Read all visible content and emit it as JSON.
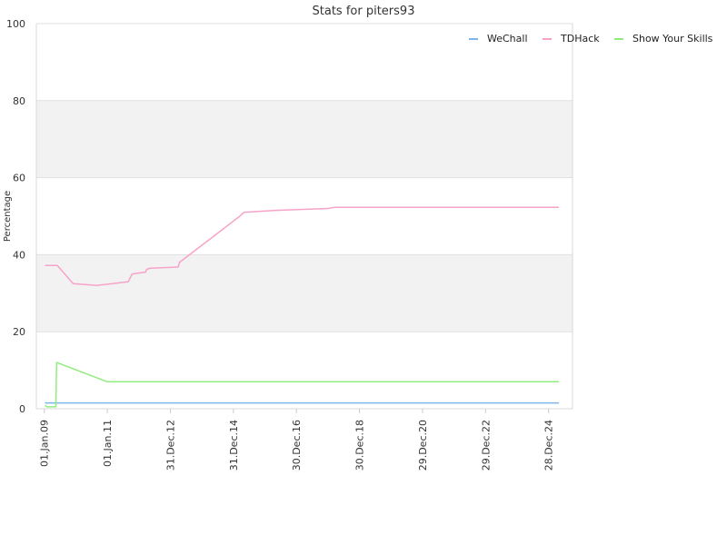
{
  "chart_data": {
    "type": "line",
    "title": "Stats for piters93",
    "xlabel": "",
    "ylabel": "Percentage",
    "ylim": [
      0,
      100
    ],
    "xlim": [
      "2008-10-01",
      "2025-10-01"
    ],
    "yticks": [
      0,
      20,
      40,
      60,
      80,
      100
    ],
    "xticks": [
      {
        "date": "2009-01-01",
        "label": "01.Jan.09"
      },
      {
        "date": "2011-01-01",
        "label": "01.Jan.11"
      },
      {
        "date": "2012-12-31",
        "label": "31.Dec.12"
      },
      {
        "date": "2014-12-31",
        "label": "31.Dec.14"
      },
      {
        "date": "2016-12-30",
        "label": "30.Dec.16"
      },
      {
        "date": "2018-12-30",
        "label": "30.Dec.18"
      },
      {
        "date": "2020-12-29",
        "label": "29.Dec.20"
      },
      {
        "date": "2022-12-29",
        "label": "29.Dec.22"
      },
      {
        "date": "2024-12-28",
        "label": "28.Dec.24"
      }
    ],
    "grid": true,
    "alternating_bands": true,
    "legend_position": "top-right",
    "series": [
      {
        "name": "WeChall",
        "color": "#7cb5ec",
        "points": [
          [
            "2009-01-15",
            1.5
          ],
          [
            "2025-04-20",
            1.5
          ]
        ]
      },
      {
        "name": "TDHack",
        "color": "#f7a3c8",
        "points": [
          [
            "2009-01-15",
            37.2
          ],
          [
            "2009-06-01",
            37.2
          ],
          [
            "2009-12-01",
            32.5
          ],
          [
            "2010-09-01",
            32.0
          ],
          [
            "2011-09-01",
            33.0
          ],
          [
            "2011-10-15",
            35.0
          ],
          [
            "2012-03-20",
            35.5
          ],
          [
            "2012-04-01",
            36.2
          ],
          [
            "2012-05-15",
            36.5
          ],
          [
            "2013-04-01",
            36.8
          ],
          [
            "2013-04-15",
            38.0
          ],
          [
            "2015-03-15",
            50.0
          ],
          [
            "2015-05-01",
            51.0
          ],
          [
            "2016-05-01",
            51.5
          ],
          [
            "2018-01-01",
            52.0
          ],
          [
            "2018-03-15",
            52.3
          ],
          [
            "2025-04-20",
            52.3
          ]
        ]
      },
      {
        "name": "Show Your Skills",
        "color": "#90ed7d",
        "points": [
          [
            "2009-01-15",
            0.8
          ],
          [
            "2009-02-01",
            0.5
          ],
          [
            "2009-05-15",
            0.5
          ],
          [
            "2009-05-20",
            8.5
          ],
          [
            "2009-05-25",
            12.0
          ],
          [
            "2011-01-01",
            7.0
          ],
          [
            "2025-04-20",
            7.0
          ]
        ]
      }
    ]
  }
}
